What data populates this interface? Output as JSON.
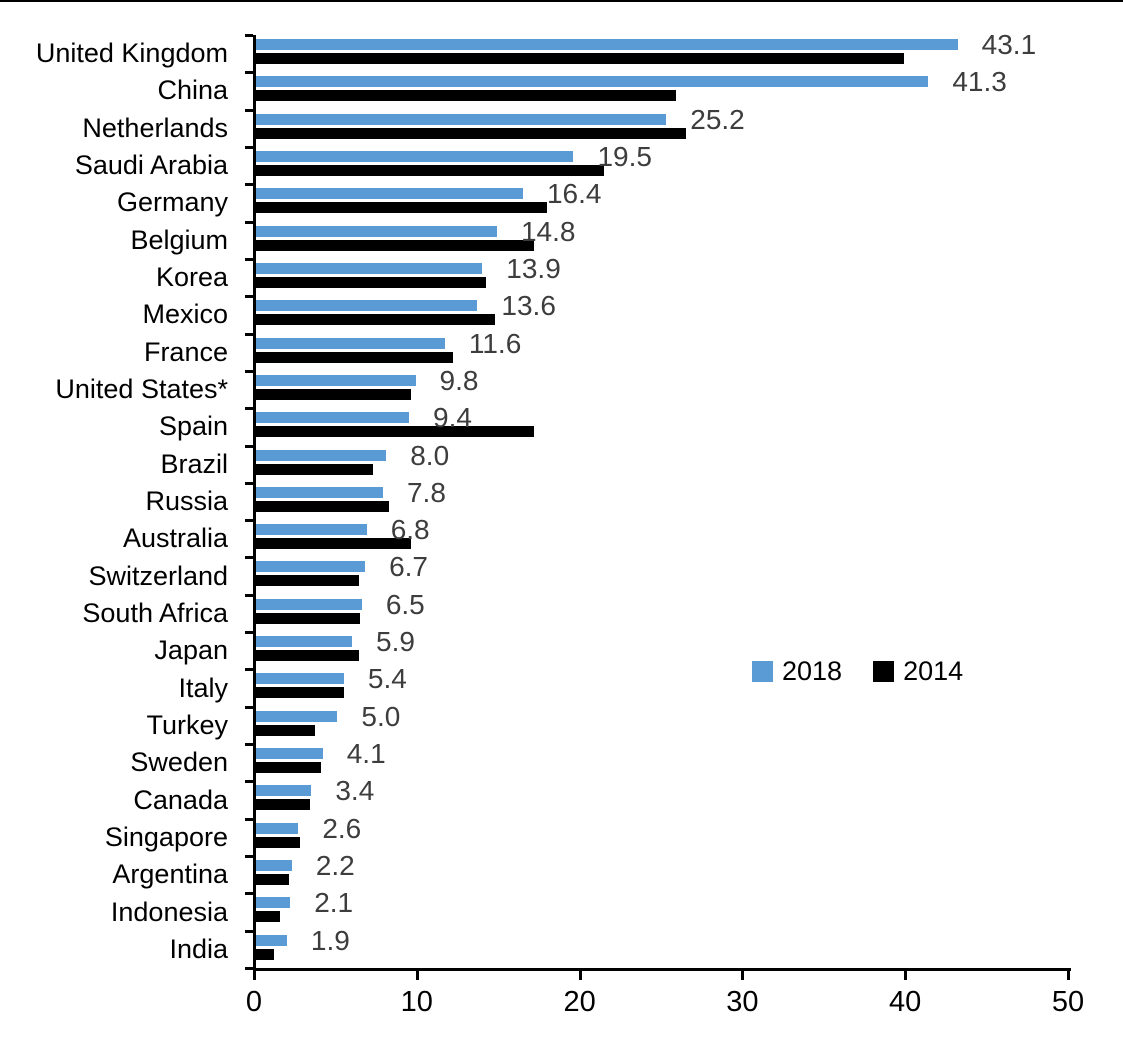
{
  "chart_data": {
    "type": "bar",
    "orientation": "horizontal",
    "title": "",
    "xlabel": "",
    "ylabel": "",
    "xlim": [
      0,
      50
    ],
    "x_ticks": [
      "0",
      "10",
      "20",
      "30",
      "40",
      "50"
    ],
    "grid": false,
    "legend_position": "middle-right",
    "categories": [
      "United Kingdom",
      "China",
      "Netherlands",
      "Saudi Arabia",
      "Germany",
      "Belgium",
      "Korea",
      "Mexico",
      "France",
      "United States*",
      "Spain",
      "Brazil",
      "Russia",
      "Australia",
      "Switzerland",
      "South Africa",
      "Japan",
      "Italy",
      "Turkey",
      "Sweden",
      "Canada",
      "Singapore",
      "Argentina",
      "Indonesia",
      "India"
    ],
    "series": [
      {
        "name": "2018",
        "color": "#5B9BD5",
        "values": [
          43.1,
          41.3,
          25.2,
          19.5,
          16.4,
          14.8,
          13.9,
          13.6,
          11.6,
          9.8,
          9.4,
          8.0,
          7.8,
          6.8,
          6.7,
          6.5,
          5.9,
          5.4,
          5.0,
          4.1,
          3.4,
          2.6,
          2.2,
          2.1,
          1.9
        ]
      },
      {
        "name": "2014",
        "color": "#000000",
        "values": [
          39.8,
          25.8,
          26.4,
          21.4,
          17.9,
          17.1,
          14.1,
          14.7,
          12.1,
          9.5,
          17.1,
          7.2,
          8.2,
          9.5,
          6.3,
          6.4,
          6.3,
          5.4,
          3.6,
          4.0,
          3.3,
          2.7,
          2.0,
          1.5,
          1.1
        ]
      }
    ],
    "data_labels": [
      "43.1",
      "41.3",
      "25.2",
      "19.5",
      "16.4",
      "14.8",
      "13.9",
      "13.6",
      "11.6",
      "9.8",
      "9.4",
      "8.0",
      "7.8",
      "6.8",
      "6.7",
      "6.5",
      "5.9",
      "5.4",
      "5.0",
      "4.1",
      "3.4",
      "2.6",
      "2.2",
      "2.1",
      "1.9"
    ],
    "data_label_series": "2018",
    "colors": {
      "bar_2018": "#5B9BD5",
      "bar_2014": "#000000",
      "value_label": "#3D3D3D",
      "axis": "#000000"
    }
  }
}
